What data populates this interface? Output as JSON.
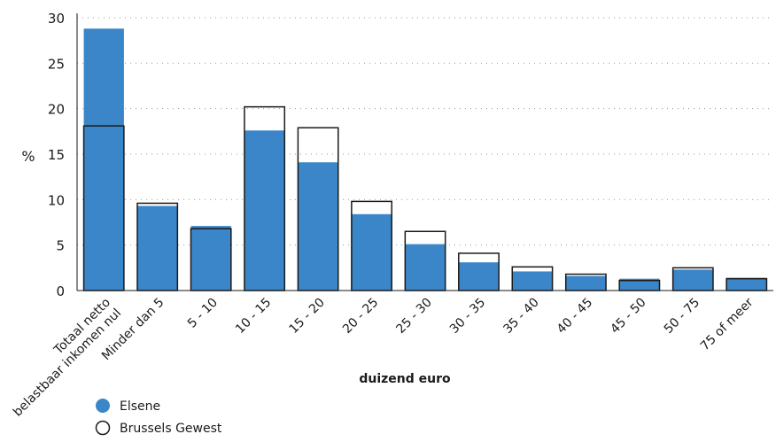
{
  "chart_data": {
    "type": "bar",
    "ylabel": "%",
    "xlabel": "duizend euro",
    "ylim": [
      0,
      30
    ],
    "yticks": [
      0,
      5,
      10,
      15,
      20,
      25,
      30
    ],
    "grid": true,
    "legend_position": "bottom-left",
    "categories": [
      "Totaal netto belastbaar inkomen nul",
      "Minder dan 5",
      "5 - 10",
      "10 - 15",
      "15 - 20",
      "20 - 25",
      "25 - 30",
      "30 - 35",
      "35 - 40",
      "40 - 45",
      "45 - 50",
      "50 - 75",
      "75 of meer"
    ],
    "series": [
      {
        "name": "Elsene",
        "color": "#3a86c8",
        "values": [
          28.8,
          9.3,
          7.1,
          17.6,
          14.1,
          8.4,
          5.1,
          3.1,
          2.1,
          1.6,
          1.3,
          2.3,
          1.4
        ]
      },
      {
        "name": "Brussels Gewest",
        "color": "#ffffff",
        "values": [
          18.1,
          9.6,
          6.8,
          20.2,
          17.9,
          9.8,
          6.5,
          4.1,
          2.6,
          1.8,
          1.1,
          2.5,
          1.3
        ]
      }
    ]
  }
}
